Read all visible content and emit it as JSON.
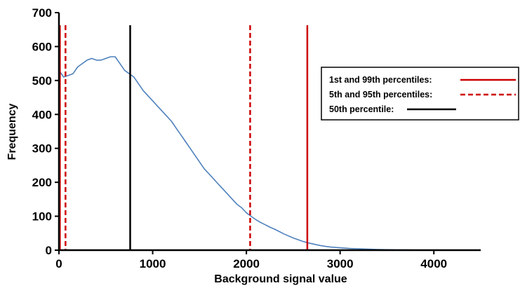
{
  "chart_data": {
    "type": "line",
    "title": "",
    "xlabel": "Background signal value",
    "ylabel": "Frequency",
    "xlim": [
      0,
      4500
    ],
    "ylim": [
      0,
      700
    ],
    "x_ticks": [
      0,
      1000,
      2000,
      3000,
      4000
    ],
    "x_tick_labels": [
      "0",
      "1000",
      "2000",
      "3000",
      "4000"
    ],
    "y_ticks": [
      0,
      100,
      200,
      300,
      400,
      500,
      600,
      700
    ],
    "y_tick_labels": [
      "0",
      "100",
      "200",
      "300",
      "400",
      "500",
      "600",
      "700"
    ],
    "grid": false,
    "legend_position": "right",
    "series": [
      {
        "color": "#4f81bd",
        "points": [
          [
            0,
            530
          ],
          [
            50,
            510
          ],
          [
            100,
            515
          ],
          [
            150,
            520
          ],
          [
            200,
            540
          ],
          [
            250,
            550
          ],
          [
            300,
            560
          ],
          [
            350,
            565
          ],
          [
            400,
            560
          ],
          [
            450,
            560
          ],
          [
            500,
            565
          ],
          [
            550,
            570
          ],
          [
            600,
            570
          ],
          [
            650,
            550
          ],
          [
            700,
            530
          ],
          [
            750,
            520
          ],
          [
            800,
            510
          ],
          [
            850,
            490
          ],
          [
            900,
            470
          ],
          [
            950,
            455
          ],
          [
            1000,
            440
          ],
          [
            1050,
            425
          ],
          [
            1100,
            410
          ],
          [
            1150,
            395
          ],
          [
            1200,
            380
          ],
          [
            1250,
            360
          ],
          [
            1300,
            340
          ],
          [
            1350,
            320
          ],
          [
            1400,
            300
          ],
          [
            1450,
            280
          ],
          [
            1500,
            260
          ],
          [
            1550,
            240
          ],
          [
            1600,
            225
          ],
          [
            1650,
            210
          ],
          [
            1700,
            195
          ],
          [
            1750,
            180
          ],
          [
            1800,
            165
          ],
          [
            1850,
            150
          ],
          [
            1900,
            135
          ],
          [
            1950,
            125
          ],
          [
            2000,
            110
          ],
          [
            2050,
            100
          ],
          [
            2100,
            90
          ],
          [
            2150,
            82
          ],
          [
            2200,
            75
          ],
          [
            2250,
            68
          ],
          [
            2300,
            62
          ],
          [
            2350,
            55
          ],
          [
            2400,
            48
          ],
          [
            2450,
            42
          ],
          [
            2500,
            36
          ],
          [
            2550,
            31
          ],
          [
            2600,
            26
          ],
          [
            2650,
            22
          ],
          [
            2700,
            19
          ],
          [
            2750,
            16
          ],
          [
            2800,
            13
          ],
          [
            2850,
            11
          ],
          [
            2900,
            9
          ],
          [
            2950,
            8
          ],
          [
            3000,
            7
          ],
          [
            3100,
            5
          ],
          [
            3200,
            4
          ],
          [
            3300,
            3
          ],
          [
            3400,
            2
          ],
          [
            3500,
            1.5
          ],
          [
            3600,
            1
          ],
          [
            3700,
            1
          ],
          [
            3800,
            0.5
          ],
          [
            3900,
            0.5
          ],
          [
            4000,
            0
          ]
        ]
      }
    ],
    "percentile_lines": [
      {
        "x": 10,
        "color": "#cc0000",
        "style": "solid",
        "label": "1st and 99th percentiles:"
      },
      {
        "x": 2650,
        "color": "#cc0000",
        "style": "solid",
        "label": "1st and 99th percentiles:"
      },
      {
        "x": 70,
        "color": "#cc0000",
        "style": "dashed",
        "label": "5th and 95th percentiles:"
      },
      {
        "x": 2040,
        "color": "#cc0000",
        "style": "dashed",
        "label": "5th and 95th percentiles:"
      },
      {
        "x": 760,
        "color": "#000000",
        "style": "solid",
        "label": "50th percentile:"
      }
    ],
    "legend": [
      {
        "label": "1st and 99th percentiles:",
        "color": "#cc0000",
        "style": "solid"
      },
      {
        "label": "5th and 95th percentiles:",
        "color": "#cc0000",
        "style": "dashed"
      },
      {
        "label": "50th percentile:",
        "color": "#000000",
        "style": "solid"
      }
    ]
  }
}
